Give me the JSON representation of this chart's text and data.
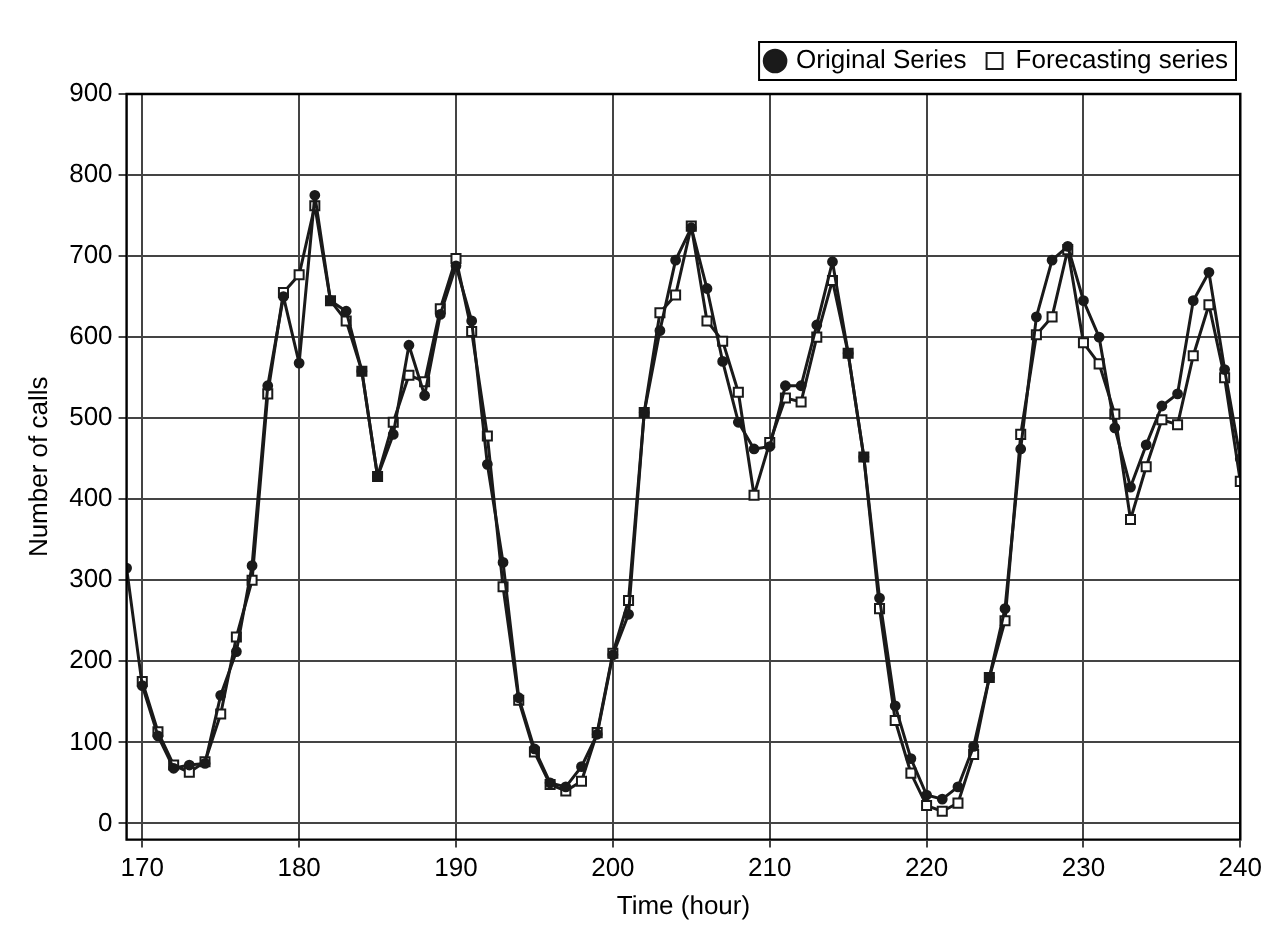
{
  "chart_data": {
    "type": "line",
    "xlabel": "Time (hour)",
    "ylabel": "Number of calls",
    "x": [
      169,
      170,
      171,
      172,
      173,
      174,
      175,
      176,
      177,
      178,
      179,
      180,
      181,
      182,
      183,
      184,
      185,
      186,
      187,
      188,
      189,
      190,
      191,
      192,
      193,
      194,
      195,
      196,
      197,
      198,
      199,
      200,
      201,
      202,
      203,
      204,
      205,
      206,
      207,
      208,
      209,
      210,
      211,
      212,
      213,
      214,
      215,
      216,
      217,
      218,
      219,
      220,
      221,
      222,
      223,
      224,
      225,
      226,
      227,
      228,
      229,
      230,
      231,
      232,
      233,
      234,
      235,
      236,
      237,
      238,
      239,
      240
    ],
    "series": [
      {
        "name": "Original Series",
        "color": "#1a1a1a",
        "marker": "circle",
        "values": [
          315,
          170,
          108,
          68,
          72,
          74,
          158,
          212,
          318,
          540,
          650,
          568,
          775,
          645,
          632,
          558,
          428,
          480,
          590,
          528,
          628,
          688,
          620,
          443,
          322,
          155,
          92,
          50,
          45,
          70,
          110,
          208,
          258,
          507,
          608,
          695,
          735,
          660,
          570,
          495,
          462,
          465,
          540,
          540,
          615,
          693,
          580,
          452,
          278,
          145,
          80,
          35,
          30,
          45,
          95,
          180,
          265,
          462,
          625,
          695,
          712,
          645,
          600,
          488,
          415,
          467,
          515,
          530,
          645,
          680,
          560,
          450
        ]
      },
      {
        "name": "Forecasting series",
        "color": "#1a1a1a",
        "marker": "square",
        "values": [
          null,
          175,
          113,
          72,
          63,
          76,
          135,
          230,
          300,
          530,
          655,
          677,
          762,
          645,
          620,
          558,
          428,
          495,
          553,
          545,
          635,
          697,
          607,
          478,
          292,
          152,
          88,
          48,
          40,
          52,
          112,
          210,
          275,
          507,
          630,
          652,
          737,
          620,
          595,
          532,
          405,
          470,
          525,
          520,
          600,
          670,
          580,
          452,
          265,
          127,
          62,
          22,
          15,
          25,
          85,
          180,
          250,
          480,
          603,
          625,
          708,
          593,
          567,
          505,
          375,
          440,
          498,
          492,
          577,
          640,
          550,
          422
        ]
      }
    ],
    "xlim": [
      169,
      240
    ],
    "xticks": [
      170,
      180,
      190,
      200,
      210,
      220,
      230,
      240
    ],
    "ylim": [
      -20,
      900
    ],
    "yticks": [
      0,
      100,
      200,
      300,
      400,
      500,
      600,
      700,
      800,
      900
    ],
    "grid": true,
    "legend": "top right",
    "line_style": "solid"
  }
}
